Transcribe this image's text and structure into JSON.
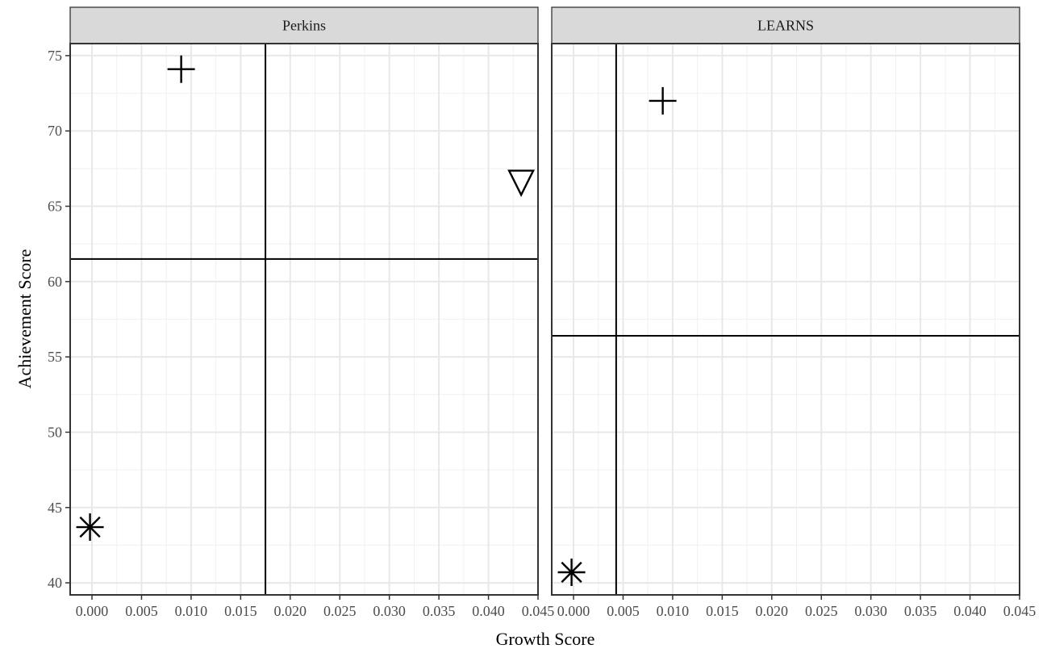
{
  "chart_data": {
    "type": "scatter",
    "x_title": "Growth Score",
    "y_title": "Achievement Score",
    "grid": true,
    "x_ticks": [
      "0.000",
      "0.005",
      "0.010",
      "0.015",
      "0.020",
      "0.025",
      "0.030",
      "0.035",
      "0.040",
      "0.045"
    ],
    "y_ticks": [
      "40",
      "45",
      "50",
      "55",
      "60",
      "65",
      "70",
      "75"
    ],
    "panels": [
      {
        "label": "Perkins",
        "xlim": [
          -0.0022,
          0.045
        ],
        "ylim": [
          39.2,
          75.8
        ],
        "hline": 61.5,
        "vline": 0.0175,
        "points": [
          {
            "x": 0.009,
            "y": 74.1,
            "shape": "plus"
          },
          {
            "x": 0.0433,
            "y": 66.6,
            "shape": "triangle-down"
          },
          {
            "x": -0.0002,
            "y": 43.7,
            "shape": "asterisk"
          }
        ]
      },
      {
        "label": "LEARNS",
        "xlim": [
          -0.0022,
          0.045
        ],
        "ylim": [
          39.2,
          75.8
        ],
        "hline": 56.4,
        "vline": 0.0043,
        "points": [
          {
            "x": 0.009,
            "y": 72.0,
            "shape": "plus"
          },
          {
            "x": -0.0002,
            "y": 40.7,
            "shape": "asterisk"
          }
        ]
      }
    ]
  }
}
